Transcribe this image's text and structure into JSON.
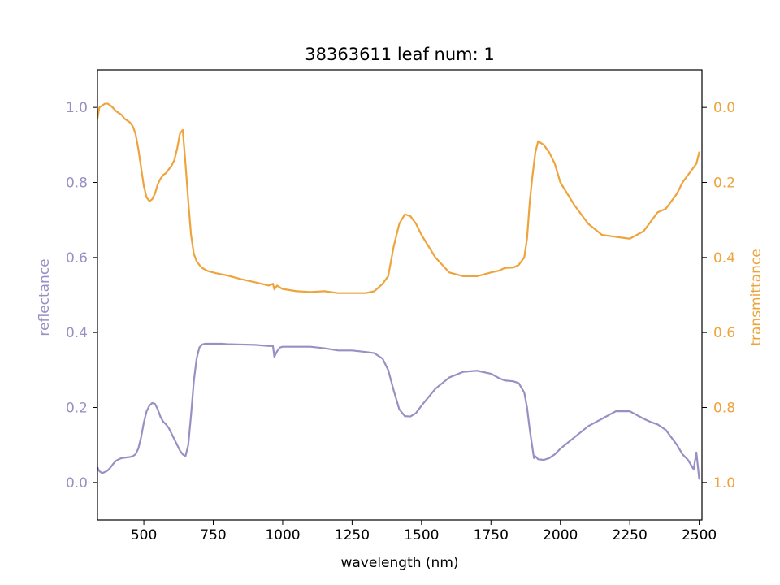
{
  "chart_data": {
    "type": "line",
    "title": "38363611 leaf num: 1",
    "xlabel": "wavelength (nm)",
    "ylabel_left": "reflectance",
    "ylabel_right": "transmittance",
    "xlim": [
      333,
      2510
    ],
    "ylim_left": [
      -0.1,
      1.1
    ],
    "ylim_right": [
      1.1,
      -0.1
    ],
    "right_axis_inverted": true,
    "grid": false,
    "x_ticks": [
      500,
      750,
      1000,
      1250,
      1500,
      1750,
      2000,
      2250,
      2500
    ],
    "x_tick_labels": [
      "500",
      "750",
      "1000",
      "1250",
      "1500",
      "1750",
      "2000",
      "2250",
      "2500"
    ],
    "y_ticks_left": [
      0.0,
      0.2,
      0.4,
      0.6,
      0.8,
      1.0
    ],
    "y_tick_labels_left": [
      "0.0",
      "0.2",
      "0.4",
      "0.6",
      "0.8",
      "1.0"
    ],
    "y_ticks_right": [
      0.0,
      0.2,
      0.4,
      0.6,
      0.8,
      1.0
    ],
    "y_tick_labels_right": [
      "0.0",
      "0.2",
      "0.4",
      "0.6",
      "0.8",
      "1.0"
    ],
    "colors": {
      "reflectance": "#9890c4",
      "transmittance": "#eea43c"
    },
    "series": [
      {
        "axis": "left",
        "x": [
          333,
          340,
          350,
          360,
          370,
          380,
          390,
          400,
          410,
          420,
          430,
          440,
          450,
          460,
          470,
          480,
          490,
          500,
          510,
          520,
          530,
          540,
          550,
          560,
          570,
          580,
          590,
          600,
          610,
          620,
          630,
          640,
          650,
          660,
          670,
          680,
          690,
          700,
          710,
          720,
          730,
          740,
          750,
          760,
          780,
          800,
          850,
          900,
          950,
          965,
          970,
          980,
          990,
          1000,
          1050,
          1100,
          1150,
          1200,
          1250,
          1300,
          1330,
          1360,
          1380,
          1400,
          1420,
          1440,
          1460,
          1480,
          1500,
          1550,
          1600,
          1650,
          1700,
          1750,
          1780,
          1800,
          1830,
          1850,
          1870,
          1880,
          1890,
          1900,
          1905,
          1910,
          1920,
          1940,
          1960,
          1980,
          2000,
          2050,
          2100,
          2150,
          2200,
          2250,
          2300,
          2330,
          2350,
          2380,
          2400,
          2420,
          2440,
          2460,
          2480,
          2490,
          2500
        ],
        "y": [
          0.04,
          0.03,
          0.025,
          0.028,
          0.032,
          0.04,
          0.05,
          0.058,
          0.062,
          0.065,
          0.066,
          0.067,
          0.068,
          0.07,
          0.075,
          0.09,
          0.12,
          0.16,
          0.19,
          0.205,
          0.212,
          0.21,
          0.195,
          0.175,
          0.162,
          0.155,
          0.145,
          0.13,
          0.115,
          0.1,
          0.085,
          0.075,
          0.07,
          0.1,
          0.18,
          0.27,
          0.33,
          0.36,
          0.368,
          0.37,
          0.37,
          0.37,
          0.37,
          0.37,
          0.37,
          0.369,
          0.368,
          0.367,
          0.364,
          0.364,
          0.335,
          0.35,
          0.36,
          0.362,
          0.362,
          0.362,
          0.358,
          0.352,
          0.352,
          0.348,
          0.345,
          0.33,
          0.3,
          0.245,
          0.195,
          0.177,
          0.176,
          0.185,
          0.205,
          0.25,
          0.28,
          0.295,
          0.298,
          0.29,
          0.278,
          0.272,
          0.27,
          0.265,
          0.24,
          0.2,
          0.14,
          0.09,
          0.065,
          0.07,
          0.062,
          0.06,
          0.065,
          0.075,
          0.09,
          0.12,
          0.15,
          0.17,
          0.19,
          0.19,
          0.17,
          0.16,
          0.155,
          0.14,
          0.12,
          0.1,
          0.075,
          0.06,
          0.035,
          0.08,
          0.01
        ]
      },
      {
        "axis": "right",
        "x": [
          333,
          340,
          350,
          360,
          370,
          380,
          390,
          400,
          410,
          420,
          430,
          440,
          450,
          460,
          470,
          480,
          490,
          500,
          510,
          520,
          530,
          540,
          550,
          560,
          570,
          580,
          590,
          600,
          610,
          620,
          630,
          640,
          650,
          660,
          670,
          680,
          690,
          700,
          710,
          720,
          730,
          740,
          750,
          760,
          780,
          800,
          850,
          900,
          950,
          965,
          970,
          980,
          990,
          1000,
          1050,
          1100,
          1150,
          1200,
          1250,
          1300,
          1330,
          1360,
          1380,
          1400,
          1420,
          1440,
          1460,
          1480,
          1500,
          1550,
          1600,
          1650,
          1700,
          1750,
          1780,
          1800,
          1830,
          1850,
          1870,
          1880,
          1890,
          1900,
          1905,
          1910,
          1920,
          1940,
          1960,
          1980,
          2000,
          2050,
          2100,
          2150,
          2200,
          2250,
          2300,
          2330,
          2350,
          2380,
          2400,
          2420,
          2440,
          2460,
          2480,
          2490,
          2500
        ],
        "y": [
          0.03,
          0.0,
          -0.005,
          -0.01,
          -0.01,
          -0.005,
          0.002,
          0.01,
          0.015,
          0.02,
          0.03,
          0.035,
          0.04,
          0.05,
          0.07,
          0.11,
          0.16,
          0.21,
          0.24,
          0.25,
          0.245,
          0.23,
          0.205,
          0.19,
          0.18,
          0.175,
          0.165,
          0.155,
          0.14,
          0.11,
          0.07,
          0.06,
          0.15,
          0.25,
          0.34,
          0.39,
          0.41,
          0.42,
          0.428,
          0.432,
          0.436,
          0.438,
          0.44,
          0.442,
          0.445,
          0.448,
          0.458,
          0.466,
          0.475,
          0.47,
          0.485,
          0.475,
          0.48,
          0.484,
          0.49,
          0.492,
          0.49,
          0.495,
          0.495,
          0.495,
          0.49,
          0.47,
          0.45,
          0.37,
          0.31,
          0.285,
          0.29,
          0.31,
          0.34,
          0.4,
          0.44,
          0.45,
          0.45,
          0.44,
          0.435,
          0.428,
          0.427,
          0.42,
          0.4,
          0.35,
          0.25,
          0.18,
          0.15,
          0.12,
          0.09,
          0.1,
          0.12,
          0.15,
          0.2,
          0.26,
          0.31,
          0.34,
          0.345,
          0.35,
          0.33,
          0.3,
          0.28,
          0.27,
          0.25,
          0.23,
          0.2,
          0.18,
          0.16,
          0.15,
          0.12
        ]
      }
    ]
  }
}
